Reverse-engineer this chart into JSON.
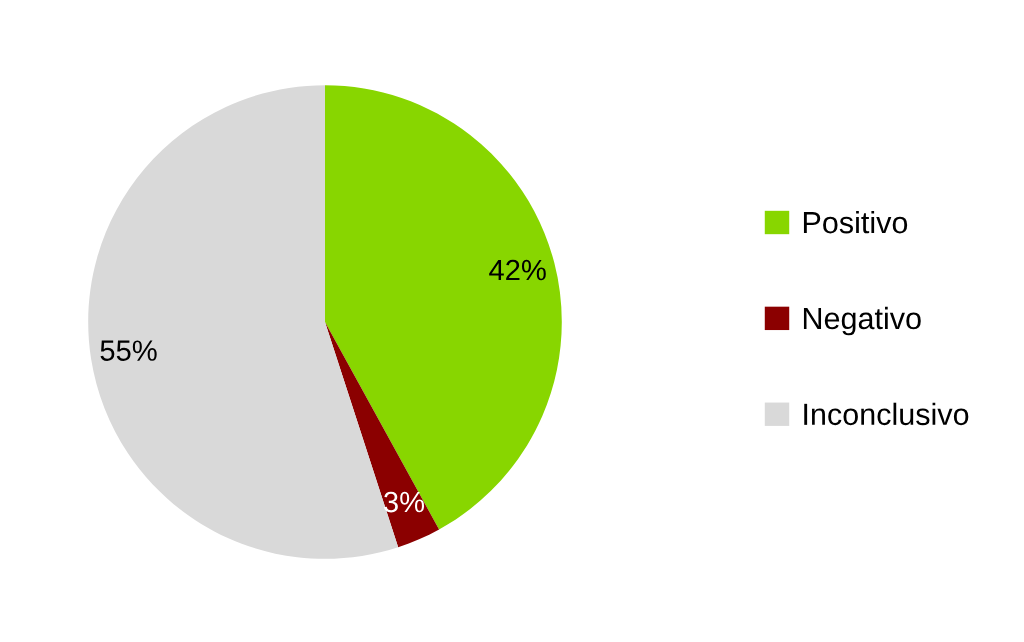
{
  "chart_data": {
    "type": "pie",
    "categories": [
      "Positivo",
      "Negativo",
      "Inconclusivo"
    ],
    "values": [
      42,
      3,
      55
    ],
    "colors": [
      "#88d600",
      "#8b0000",
      "#d9d9d9"
    ],
    "value_labels": [
      "42%",
      "3%",
      "55%"
    ],
    "legend": "right"
  }
}
